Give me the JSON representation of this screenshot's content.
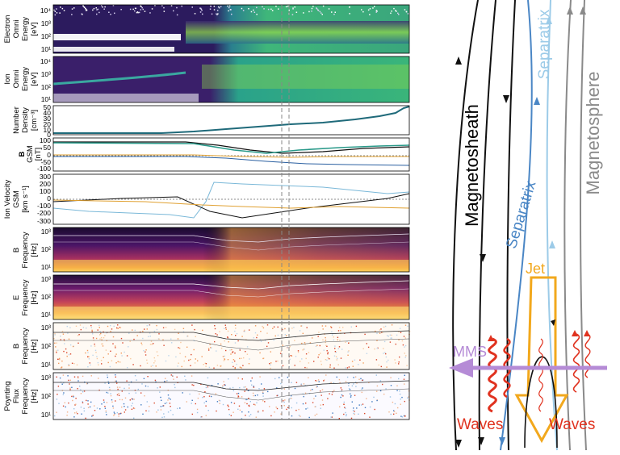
{
  "panels": [
    {
      "id": "electron",
      "label_lines": [
        "Electron",
        "Omni",
        "Energy",
        "[eV]"
      ],
      "ticks": [
        "10⁴",
        "10³",
        "10²",
        "10¹"
      ]
    },
    {
      "id": "ion",
      "label_lines": [
        "Ion",
        "Omni",
        "Energy",
        "[eV]"
      ],
      "ticks": [
        "10⁴",
        "10³",
        "10²",
        "10¹"
      ]
    },
    {
      "id": "density",
      "label_lines": [
        "Number",
        "Density",
        "[cm⁻³]"
      ],
      "ticks": [
        "50",
        "40",
        "30",
        "20",
        "10",
        "0"
      ]
    },
    {
      "id": "bfield",
      "label_lines": [
        "B",
        "GSM",
        "[nT]"
      ],
      "ticks": [
        "100",
        "50",
        "0",
        "-50",
        "-100"
      ]
    },
    {
      "id": "velocity",
      "label_lines": [
        "Ion Velocity",
        "GSM",
        "[km s⁻¹]"
      ],
      "ticks": [
        "300",
        "200",
        "100",
        "0",
        "-100",
        "-200",
        "-300"
      ]
    },
    {
      "id": "bspec",
      "label_lines": [
        "B",
        "Frequency",
        "[Hz]"
      ],
      "ticks": [
        "10³",
        "10²",
        "10¹"
      ]
    },
    {
      "id": "espec",
      "label_lines": [
        "E",
        "Frequency",
        "[Hz]"
      ],
      "ticks": [
        "10³",
        "10²",
        "10¹"
      ]
    },
    {
      "id": "bpol",
      "label_lines": [
        "B",
        "Frequency",
        "[Hz]"
      ],
      "ticks": [
        "10³",
        "10²",
        "10¹"
      ]
    },
    {
      "id": "poynting",
      "label_lines": [
        "Poynting",
        "Flux",
        "Frequency",
        "[Hz]"
      ],
      "ticks": [
        "10³",
        "10²",
        "10¹"
      ]
    }
  ],
  "schematic": {
    "magnetosheath": "Magnetosheath",
    "magnetosphere": "Magnetosphere",
    "separatrix_top": "Separatrix",
    "separatrix_mid": "Separatrix",
    "jet": "Jet",
    "mms": "MMS",
    "waves_left": "Waves",
    "waves_right": "Waves"
  },
  "colors": {
    "black": "#111111",
    "mid_blue": "#4a86c5",
    "light_blue": "#9ccbe8",
    "gray": "#8a8a8a",
    "jet": "#f2a81d",
    "mms": "#b58bd6",
    "waves": "#e0321f"
  }
}
